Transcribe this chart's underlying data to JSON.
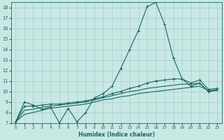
{
  "xlabel": "Humidex (Indice chaleur)",
  "xlim": [
    -0.5,
    23.5
  ],
  "ylim": [
    7,
    18.5
  ],
  "yticks": [
    7,
    8,
    9,
    10,
    11,
    12,
    13,
    14,
    15,
    16,
    17,
    18
  ],
  "xticks": [
    0,
    1,
    2,
    3,
    4,
    5,
    6,
    7,
    8,
    9,
    10,
    11,
    12,
    13,
    14,
    15,
    16,
    17,
    18,
    19,
    20,
    21,
    22,
    23
  ],
  "background_color": "#c8e8e4",
  "grid_color": "#a8cccc",
  "line_color": "#1a6660",
  "curve_main_x": [
    0,
    1,
    2,
    3,
    4,
    5,
    6,
    7,
    8,
    9,
    10,
    11,
    12,
    13,
    14,
    15,
    16,
    17,
    18,
    19,
    20,
    21,
    22,
    23
  ],
  "curve_main_y": [
    7.1,
    9.0,
    8.7,
    8.3,
    8.5,
    7.0,
    8.4,
    7.1,
    8.0,
    9.4,
    9.8,
    10.5,
    12.2,
    14.0,
    15.8,
    18.1,
    18.5,
    16.4,
    13.2,
    11.2,
    10.5,
    10.8,
    10.0,
    10.2
  ],
  "curve_a_x": [
    0,
    1,
    2,
    3,
    4,
    5,
    6,
    7,
    8,
    9,
    10,
    11,
    12,
    13,
    14,
    15,
    16,
    17,
    18,
    19,
    20,
    21,
    22,
    23
  ],
  "curve_a_y": [
    7.1,
    8.6,
    8.6,
    8.7,
    8.8,
    8.8,
    8.9,
    9.0,
    9.1,
    9.3,
    9.5,
    9.8,
    10.0,
    10.3,
    10.5,
    10.8,
    11.0,
    11.1,
    11.2,
    11.2,
    10.8,
    11.1,
    10.2,
    10.3
  ],
  "curve_b_x": [
    0,
    1,
    2,
    3,
    4,
    5,
    6,
    7,
    8,
    9,
    10,
    11,
    12,
    13,
    14,
    15,
    16,
    17,
    18,
    19,
    20,
    21,
    22,
    23
  ],
  "curve_b_y": [
    7.1,
    8.2,
    8.3,
    8.5,
    8.6,
    8.7,
    8.8,
    8.9,
    9.0,
    9.2,
    9.4,
    9.6,
    9.8,
    10.0,
    10.1,
    10.3,
    10.4,
    10.5,
    10.6,
    10.7,
    10.7,
    10.8,
    10.0,
    10.1
  ],
  "curve_c_x": [
    0,
    1,
    2,
    3,
    4,
    5,
    6,
    7,
    8,
    9,
    10,
    11,
    12,
    13,
    14,
    15,
    16,
    17,
    18,
    19,
    20,
    21,
    22,
    23
  ],
  "curve_c_y": [
    7.1,
    7.8,
    8.0,
    8.2,
    8.4,
    8.5,
    8.6,
    8.7,
    8.8,
    9.0,
    9.2,
    9.3,
    9.5,
    9.6,
    9.8,
    9.9,
    10.0,
    10.1,
    10.2,
    10.3,
    10.4,
    10.5,
    10.1,
    10.1
  ]
}
